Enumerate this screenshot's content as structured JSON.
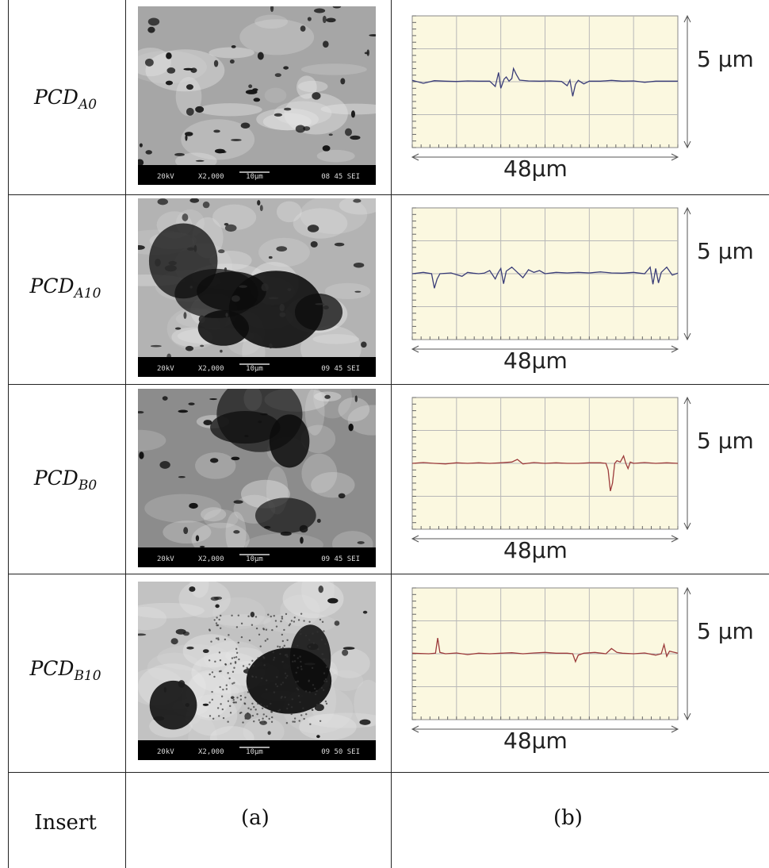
{
  "rows": [
    {
      "label_main": "PCD",
      "label_sub": "A0",
      "sem": {
        "accel": "20kV",
        "mag": "X2,000",
        "scale": "10µm",
        "id": "08 45 SEI",
        "tone": "light-uniform"
      },
      "profile": {
        "length_label": "48μm",
        "height_label": "5 μm",
        "line_color": "#3a3d78",
        "points": [
          [
            0,
            0.05
          ],
          [
            2,
            -0.06
          ],
          [
            4,
            0.04
          ],
          [
            6,
            0.02
          ],
          [
            8,
            0.01
          ],
          [
            10,
            0.03
          ],
          [
            12,
            0.02
          ],
          [
            14,
            0.02
          ],
          [
            15,
            -0.18
          ],
          [
            15.6,
            0.35
          ],
          [
            16,
            -0.25
          ],
          [
            16.6,
            0.1
          ],
          [
            17,
            0.18
          ],
          [
            17.5,
            0.02
          ],
          [
            18,
            0.12
          ],
          [
            18.3,
            0.5
          ],
          [
            18.8,
            0.28
          ],
          [
            19.4,
            0.06
          ],
          [
            21,
            0.03
          ],
          [
            23,
            0.02
          ],
          [
            25,
            0.03
          ],
          [
            27,
            0.01
          ],
          [
            28,
            -0.15
          ],
          [
            28.5,
            0.06
          ],
          [
            29,
            -0.55
          ],
          [
            29.5,
            -0.1
          ],
          [
            30,
            0.05
          ],
          [
            31,
            -0.08
          ],
          [
            32,
            0.02
          ],
          [
            34,
            0.02
          ],
          [
            36,
            0.05
          ],
          [
            38,
            0.02
          ],
          [
            40,
            0.03
          ],
          [
            42,
            -0.02
          ],
          [
            44,
            0.02
          ],
          [
            46,
            0.02
          ],
          [
            48,
            0.02
          ]
        ]
      }
    },
    {
      "label_main": "PCD",
      "label_sub": "A10",
      "sem": {
        "accel": "20kV",
        "mag": "X2,000",
        "scale": "10µm",
        "id": "09 45 SEI",
        "tone": "light-mottled"
      },
      "profile": {
        "length_label": "48μm",
        "height_label": "5 μm",
        "line_color": "#3a3d78",
        "points": [
          [
            0,
            0.0
          ],
          [
            2,
            0.05
          ],
          [
            3.5,
            0.0
          ],
          [
            4,
            -0.55
          ],
          [
            4.5,
            -0.2
          ],
          [
            5,
            0.0
          ],
          [
            7,
            0.03
          ],
          [
            9,
            -0.1
          ],
          [
            10,
            0.05
          ],
          [
            11,
            0.02
          ],
          [
            12,
            0.0
          ],
          [
            13,
            0.02
          ],
          [
            14,
            0.12
          ],
          [
            15,
            -0.2
          ],
          [
            15.5,
            0.03
          ],
          [
            16,
            0.2
          ],
          [
            16.5,
            -0.38
          ],
          [
            17,
            0.1
          ],
          [
            18,
            0.25
          ],
          [
            19,
            0.05
          ],
          [
            20,
            -0.15
          ],
          [
            21,
            0.15
          ],
          [
            22,
            0.05
          ],
          [
            23,
            0.12
          ],
          [
            24,
            0.0
          ],
          [
            26,
            0.05
          ],
          [
            28,
            0.03
          ],
          [
            30,
            0.05
          ],
          [
            32,
            0.03
          ],
          [
            34,
            0.07
          ],
          [
            36,
            0.03
          ],
          [
            38,
            0.02
          ],
          [
            40,
            0.05
          ],
          [
            42,
            0.0
          ],
          [
            43,
            0.25
          ],
          [
            43.5,
            -0.4
          ],
          [
            44,
            0.2
          ],
          [
            44.5,
            -0.35
          ],
          [
            45,
            0.05
          ],
          [
            46,
            0.25
          ],
          [
            47,
            -0.05
          ],
          [
            48,
            0.02
          ]
        ]
      }
    },
    {
      "label_main": "PCD",
      "label_sub": "B0",
      "sem": {
        "accel": "20kV",
        "mag": "X2,000",
        "scale": "10µm",
        "id": "09 45 SEI",
        "tone": "dark-patches"
      },
      "profile": {
        "length_label": "48μm",
        "height_label": "5 μm",
        "line_color": "#9c3b3b",
        "points": [
          [
            0,
            0.0
          ],
          [
            2,
            0.03
          ],
          [
            4,
            0.0
          ],
          [
            6,
            -0.02
          ],
          [
            8,
            0.02
          ],
          [
            10,
            0.0
          ],
          [
            12,
            0.02
          ],
          [
            14,
            0.0
          ],
          [
            16,
            0.02
          ],
          [
            18,
            0.05
          ],
          [
            19,
            0.15
          ],
          [
            20,
            -0.02
          ],
          [
            22,
            0.03
          ],
          [
            24,
            0.0
          ],
          [
            26,
            0.02
          ],
          [
            28,
            0.0
          ],
          [
            30,
            0.0
          ],
          [
            32,
            0.02
          ],
          [
            34,
            0.02
          ],
          [
            35,
            0.0
          ],
          [
            35.4,
            -0.25
          ],
          [
            35.8,
            -1.05
          ],
          [
            36.2,
            -0.75
          ],
          [
            36.6,
            0.0
          ],
          [
            37,
            0.1
          ],
          [
            37.6,
            0.05
          ],
          [
            38.2,
            0.28
          ],
          [
            38.6,
            0.0
          ],
          [
            39,
            -0.2
          ],
          [
            39.4,
            0.05
          ],
          [
            40,
            0.0
          ],
          [
            42,
            0.03
          ],
          [
            44,
            0.0
          ],
          [
            46,
            0.02
          ],
          [
            48,
            0.0
          ]
        ]
      }
    },
    {
      "label_main": "PCD",
      "label_sub": "B10",
      "sem": {
        "accel": "20kV",
        "mag": "X2,000",
        "scale": "10µm",
        "id": "09 50 SEI",
        "tone": "dotted-bright"
      },
      "profile": {
        "length_label": "48μm",
        "height_label": "5 μm",
        "line_color": "#9c3b3b",
        "points": [
          [
            0,
            0.02
          ],
          [
            3,
            0.0
          ],
          [
            4.2,
            0.02
          ],
          [
            4.6,
            0.6
          ],
          [
            5,
            0.05
          ],
          [
            6,
            0.0
          ],
          [
            8,
            0.03
          ],
          [
            10,
            -0.03
          ],
          [
            12,
            0.02
          ],
          [
            14,
            0.0
          ],
          [
            16,
            0.02
          ],
          [
            18,
            0.04
          ],
          [
            20,
            0.0
          ],
          [
            22,
            0.03
          ],
          [
            24,
            0.05
          ],
          [
            26,
            0.02
          ],
          [
            28,
            0.02
          ],
          [
            29,
            0.0
          ],
          [
            29.5,
            -0.3
          ],
          [
            30,
            -0.05
          ],
          [
            31,
            0.02
          ],
          [
            33,
            0.05
          ],
          [
            35,
            0.0
          ],
          [
            36,
            0.2
          ],
          [
            37,
            0.05
          ],
          [
            38,
            0.02
          ],
          [
            40,
            0.0
          ],
          [
            42,
            0.03
          ],
          [
            44,
            -0.05
          ],
          [
            45,
            0.0
          ],
          [
            45.5,
            0.35
          ],
          [
            46,
            -0.1
          ],
          [
            46.5,
            0.1
          ],
          [
            48,
            0.02
          ]
        ]
      }
    }
  ],
  "footer": {
    "label": "Insert",
    "caption_a": "(a)",
    "caption_b": "(b)"
  }
}
